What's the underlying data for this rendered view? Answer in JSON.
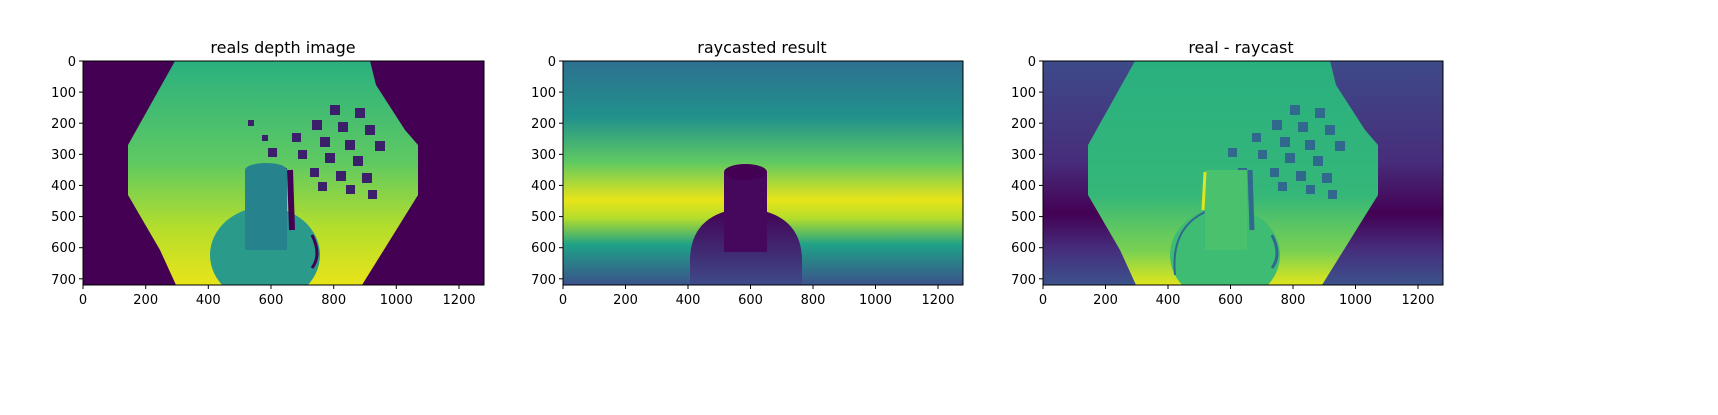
{
  "chart_data": [
    {
      "type": "heatmap",
      "title": "reals depth image",
      "xlabel": "",
      "ylabel": "",
      "xlim": [
        0,
        1280
      ],
      "ylim": [
        720,
        0
      ],
      "xticks": [
        0,
        200,
        400,
        600,
        800,
        1000,
        1200
      ],
      "yticks": [
        0,
        100,
        200,
        300,
        400,
        500,
        600,
        700
      ],
      "colormap": "viridis",
      "image": "real"
    },
    {
      "type": "heatmap",
      "title": "raycasted result",
      "xlabel": "",
      "ylabel": "",
      "xlim": [
        0,
        1280
      ],
      "ylim": [
        720,
        0
      ],
      "xticks": [
        0,
        200,
        400,
        600,
        800,
        1000,
        1200
      ],
      "yticks": [
        0,
        100,
        200,
        300,
        400,
        500,
        600,
        700
      ],
      "colormap": "viridis",
      "image": "raycast"
    },
    {
      "type": "heatmap",
      "title": "real - raycast",
      "xlabel": "",
      "ylabel": "",
      "xlim": [
        0,
        1280
      ],
      "ylim": [
        720,
        0
      ],
      "xticks": [
        0,
        200,
        400,
        600,
        800,
        1000,
        1200
      ],
      "yticks": [
        0,
        100,
        200,
        300,
        400,
        500,
        600,
        700
      ],
      "colormap": "viridis",
      "image": "diff"
    }
  ],
  "colors": {
    "viridis_dark": "#440154",
    "viridis_blue": "#3b528b",
    "viridis_teal": "#21918c",
    "viridis_green": "#5ec962",
    "viridis_yellow": "#fde725"
  }
}
